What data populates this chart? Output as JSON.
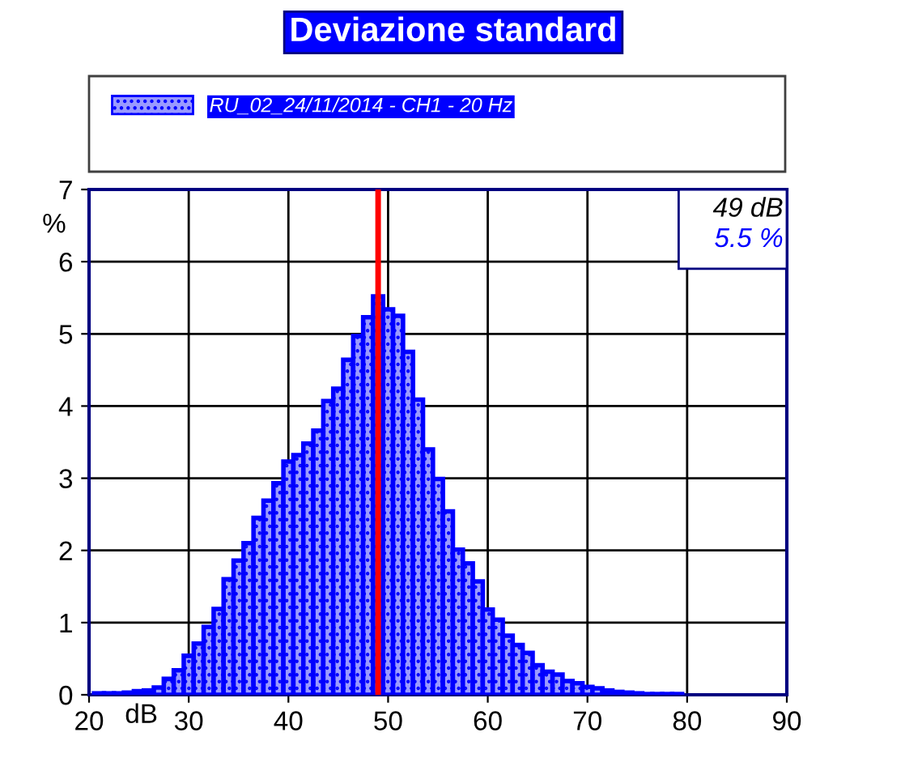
{
  "chart_data": {
    "type": "histogram",
    "title": "Deviazione standard",
    "xlabel": "dB",
    "ylabel": "%",
    "bins": [
      20.5,
      21.5,
      22.5,
      23.5,
      24.5,
      25.5,
      26.5,
      27.5,
      28.5,
      29.5,
      30.5,
      31.5,
      32.5,
      33.5,
      34.5,
      35.5,
      36.5,
      37.5,
      38.5,
      39.5,
      40.5,
      41.5,
      42.5,
      43.5,
      44.5,
      45.5,
      46.5,
      47.5,
      48.5,
      49.5,
      50.5,
      51.5,
      52.5,
      53.5,
      54.5,
      55.5,
      56.5,
      57.5,
      58.5,
      59.5,
      60.5,
      61.5,
      62.5,
      63.5,
      64.5,
      65.5,
      66.5,
      67.5,
      68.5,
      69.5,
      70.5,
      71.5,
      72.5,
      73.5,
      74.5,
      75.5,
      76.5,
      77.5,
      78.5,
      79.5
    ],
    "series": [
      {
        "name": "RU_02_24/11/2014 - CH1 - 20 Hz",
        "color": "#0000ff",
        "values": [
          0.02,
          0.02,
          0.02,
          0.03,
          0.05,
          0.06,
          0.1,
          0.22,
          0.34,
          0.54,
          0.71,
          0.94,
          1.19,
          1.6,
          1.86,
          2.1,
          2.45,
          2.69,
          2.93,
          3.23,
          3.32,
          3.48,
          3.66,
          4.07,
          4.24,
          4.64,
          4.97,
          5.23,
          5.52,
          5.34,
          5.25,
          4.75,
          4.09,
          3.4,
          2.99,
          2.54,
          2.01,
          1.82,
          1.57,
          1.18,
          1.04,
          0.82,
          0.69,
          0.58,
          0.41,
          0.32,
          0.28,
          0.19,
          0.16,
          0.11,
          0.09,
          0.06,
          0.04,
          0.03,
          0.02,
          0.01,
          0.01,
          0.01,
          0.01
        ]
      }
    ],
    "xlim": [
      20,
      90
    ],
    "xticks": [
      20,
      30,
      40,
      50,
      60,
      70,
      80,
      90
    ],
    "ylim": [
      0,
      7
    ],
    "yticks": [
      0,
      1,
      2,
      3,
      4,
      5,
      6,
      7
    ],
    "grid": true,
    "legend": "top",
    "ref_lines": [
      {
        "axis": "x",
        "value": 49,
        "label": null,
        "color": "#ff0000"
      }
    ],
    "annotations": [
      "49 dB",
      "5.5 %"
    ]
  }
}
